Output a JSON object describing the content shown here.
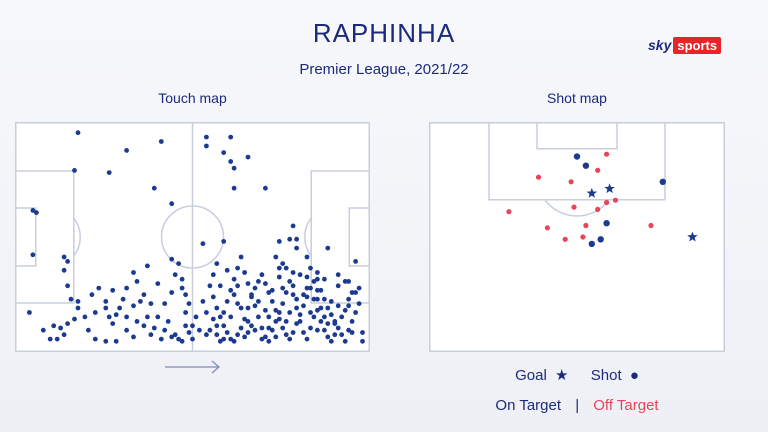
{
  "title": "RAPHINHA",
  "subtitle": "Premier League, 2021/22",
  "brand": {
    "sky": "sky",
    "sports": "sports"
  },
  "touch_label": "Touch map",
  "shot_label": "Shot map",
  "legend": {
    "goal": "Goal",
    "goal_symbol": "★",
    "shot": "Shot",
    "shot_symbol": "●",
    "on_target": "On Target",
    "separator": "|",
    "off_target": "Off Target"
  },
  "colors": {
    "navy": "#1c3a8f",
    "red": "#e8445a",
    "pitch_line": "#c8cede"
  },
  "chart_data": [
    {
      "type": "scatter",
      "name": "touch map",
      "xlim": [
        0,
        100
      ],
      "ylim": [
        0,
        100
      ],
      "grid": false,
      "points": [
        [
          31,
          89
        ],
        [
          26,
          79
        ],
        [
          16,
          80
        ],
        [
          17,
          97
        ],
        [
          41,
          93
        ],
        [
          54,
          95
        ],
        [
          61,
          95
        ],
        [
          59,
          88
        ],
        [
          66,
          86
        ],
        [
          61,
          84
        ],
        [
          62,
          81
        ],
        [
          62,
          72
        ],
        [
          71,
          72
        ],
        [
          54,
          91
        ],
        [
          44,
          65
        ],
        [
          39,
          72
        ],
        [
          4,
          62
        ],
        [
          5,
          61
        ],
        [
          4,
          42
        ],
        [
          13,
          41
        ],
        [
          14,
          39
        ],
        [
          13,
          35
        ],
        [
          14,
          28
        ],
        [
          59,
          48
        ],
        [
          53,
          47
        ],
        [
          75,
          48
        ],
        [
          74,
          41
        ],
        [
          75,
          36
        ],
        [
          78,
          49
        ],
        [
          76,
          38
        ],
        [
          79,
          34
        ],
        [
          83,
          32
        ],
        [
          86,
          31
        ],
        [
          84,
          36
        ],
        [
          88,
          31
        ],
        [
          86,
          26
        ],
        [
          86,
          22
        ],
        [
          90,
          21
        ],
        [
          92,
          28
        ],
        [
          91,
          11
        ],
        [
          94,
          30
        ],
        [
          95,
          19
        ],
        [
          96,
          25
        ],
        [
          95,
          30
        ],
        [
          97,
          39
        ],
        [
          89,
          45
        ],
        [
          80,
          45
        ],
        [
          80,
          49
        ],
        [
          83,
          41
        ],
        [
          79,
          55
        ],
        [
          3,
          16
        ],
        [
          7,
          8
        ],
        [
          9,
          4
        ],
        [
          11,
          4
        ],
        [
          13,
          6
        ],
        [
          14,
          11
        ],
        [
          16,
          13
        ],
        [
          17,
          18
        ],
        [
          21,
          24
        ],
        [
          23,
          27
        ],
        [
          25,
          21
        ],
        [
          22,
          16
        ],
        [
          26,
          14
        ],
        [
          27,
          11
        ],
        [
          29,
          18
        ],
        [
          30,
          22
        ],
        [
          31,
          14
        ],
        [
          33,
          34
        ],
        [
          34,
          30
        ],
        [
          36,
          24
        ],
        [
          38,
          20
        ],
        [
          40,
          14
        ],
        [
          42,
          20
        ],
        [
          44,
          25
        ],
        [
          45,
          33
        ],
        [
          46,
          38
        ],
        [
          47,
          27
        ],
        [
          48,
          24
        ],
        [
          49,
          20
        ],
        [
          51,
          14
        ],
        [
          52,
          8
        ],
        [
          49,
          7
        ],
        [
          46,
          4
        ],
        [
          44,
          5
        ],
        [
          42,
          8
        ],
        [
          41,
          4
        ],
        [
          38,
          6
        ],
        [
          36,
          10
        ],
        [
          34,
          12
        ],
        [
          33,
          5
        ],
        [
          31,
          8
        ],
        [
          28,
          3
        ],
        [
          25,
          3
        ],
        [
          22,
          4
        ],
        [
          20,
          8
        ],
        [
          19,
          14
        ],
        [
          17,
          21
        ],
        [
          15,
          22
        ],
        [
          12,
          9
        ],
        [
          10,
          10
        ],
        [
          27,
          26
        ],
        [
          31,
          27
        ],
        [
          35,
          21
        ],
        [
          37,
          37
        ],
        [
          40,
          29
        ],
        [
          44,
          40
        ],
        [
          47,
          31
        ],
        [
          45,
          6
        ],
        [
          48,
          10
        ],
        [
          50,
          4
        ],
        [
          47,
          3
        ],
        [
          55,
          28
        ],
        [
          56,
          23
        ],
        [
          57,
          18
        ],
        [
          58,
          14
        ],
        [
          59,
          10
        ],
        [
          60,
          7
        ],
        [
          61,
          4
        ],
        [
          62,
          3
        ],
        [
          63,
          6
        ],
        [
          64,
          9
        ],
        [
          65,
          13
        ],
        [
          66,
          18
        ],
        [
          67,
          23
        ],
        [
          68,
          27
        ],
        [
          69,
          30
        ],
        [
          70,
          33
        ],
        [
          71,
          29
        ],
        [
          72,
          25
        ],
        [
          73,
          21
        ],
        [
          74,
          17
        ],
        [
          75,
          13
        ],
        [
          76,
          9
        ],
        [
          77,
          6
        ],
        [
          78,
          4
        ],
        [
          79,
          7
        ],
        [
          80,
          11
        ],
        [
          81,
          15
        ],
        [
          82,
          19
        ],
        [
          83,
          23
        ],
        [
          84,
          27
        ],
        [
          85,
          30
        ],
        [
          86,
          34
        ],
        [
          87,
          26
        ],
        [
          88,
          22
        ],
        [
          89,
          18
        ],
        [
          90,
          15
        ],
        [
          91,
          12
        ],
        [
          92,
          9
        ],
        [
          93,
          6
        ],
        [
          94,
          3
        ],
        [
          95,
          8
        ],
        [
          96,
          12
        ],
        [
          97,
          16
        ],
        [
          98,
          20
        ],
        [
          99,
          7
        ],
        [
          99,
          3
        ],
        [
          98,
          27
        ],
        [
          92,
          19
        ],
        [
          56,
          13
        ],
        [
          57,
          6
        ],
        [
          58,
          3
        ],
        [
          59,
          16
        ],
        [
          60,
          21
        ],
        [
          61,
          26
        ],
        [
          62,
          31
        ],
        [
          63,
          36
        ],
        [
          64,
          41
        ],
        [
          65,
          34
        ],
        [
          66,
          29
        ],
        [
          67,
          24
        ],
        [
          68,
          19
        ],
        [
          69,
          14
        ],
        [
          70,
          9
        ],
        [
          71,
          5
        ],
        [
          72,
          3
        ],
        [
          73,
          8
        ],
        [
          74,
          12
        ],
        [
          75,
          16
        ],
        [
          76,
          20
        ],
        [
          77,
          25
        ],
        [
          78,
          30
        ],
        [
          79,
          24
        ],
        [
          80,
          18
        ],
        [
          81,
          12
        ],
        [
          82,
          7
        ],
        [
          83,
          4
        ],
        [
          84,
          9
        ],
        [
          85,
          14
        ],
        [
          86,
          17
        ],
        [
          87,
          12
        ],
        [
          88,
          8
        ],
        [
          89,
          5
        ],
        [
          90,
          3
        ],
        [
          93,
          14
        ],
        [
          95,
          22
        ],
        [
          97,
          25
        ],
        [
          55,
          8
        ],
        [
          56,
          33
        ],
        [
          58,
          28
        ],
        [
          60,
          35
        ],
        [
          62,
          24
        ],
        [
          64,
          18
        ],
        [
          66,
          12
        ],
        [
          68,
          8
        ],
        [
          70,
          4
        ],
        [
          73,
          26
        ],
        [
          75,
          32
        ],
        [
          77,
          36
        ],
        [
          79,
          28
        ],
        [
          81,
          33
        ],
        [
          83,
          27
        ],
        [
          85,
          22
        ],
        [
          87,
          18
        ],
        [
          89,
          11
        ],
        [
          91,
          6
        ],
        [
          57,
          38
        ],
        [
          63,
          28
        ],
        [
          67,
          10
        ],
        [
          71,
          17
        ],
        [
          76,
          27
        ],
        [
          82,
          24
        ],
        [
          59,
          4
        ],
        [
          65,
          5
        ],
        [
          72,
          9
        ],
        [
          78,
          16
        ],
        [
          54,
          16
        ],
        [
          53,
          21
        ],
        [
          54,
          6
        ],
        [
          57,
          10
        ],
        [
          61,
          14
        ],
        [
          63,
          20
        ],
        [
          66,
          7
        ],
        [
          69,
          21
        ],
        [
          72,
          14
        ],
        [
          74,
          5
        ],
        [
          77,
          12
        ],
        [
          80,
          22
        ],
        [
          84,
          16
        ],
        [
          86,
          8
        ],
        [
          88,
          14
        ],
        [
          92,
          33
        ],
        [
          94,
          17
        ],
        [
          96,
          7
        ],
        [
          25,
          18
        ],
        [
          28,
          15
        ],
        [
          33,
          19
        ],
        [
          37,
          14
        ],
        [
          39,
          9
        ],
        [
          43,
          12
        ],
        [
          48,
          16
        ],
        [
          50,
          10
        ]
      ]
    },
    {
      "type": "scatter",
      "name": "shot map",
      "xlim": [
        0,
        100
      ],
      "ylim": [
        0,
        100
      ],
      "grid": false,
      "legend": "bottom",
      "series": [
        {
          "name": "Goal",
          "marker": "star",
          "color": "#1c3a8f",
          "points": [
            [
              55,
              69
            ],
            [
              61,
              71
            ],
            [
              89,
              50
            ]
          ]
        },
        {
          "name": "Shot",
          "marker": "circle",
          "color": "#1c3a8f",
          "points": [
            [
              50,
              85
            ],
            [
              53,
              81
            ],
            [
              79,
              74
            ],
            [
              60,
              56
            ],
            [
              58,
              49
            ],
            [
              55,
              47
            ]
          ]
        },
        {
          "name": "Shot",
          "marker": "circle",
          "color": "#e8445a",
          "points": [
            [
              60,
              86
            ],
            [
              57,
              79
            ],
            [
              37,
              76
            ],
            [
              48,
              74
            ],
            [
              63,
              66
            ],
            [
              60,
              65
            ],
            [
              57,
              62
            ],
            [
              27,
              61
            ],
            [
              49,
              63
            ],
            [
              40,
              54
            ],
            [
              53,
              55
            ],
            [
              52,
              50
            ],
            [
              46,
              49
            ],
            [
              75,
              55
            ]
          ]
        }
      ]
    }
  ]
}
